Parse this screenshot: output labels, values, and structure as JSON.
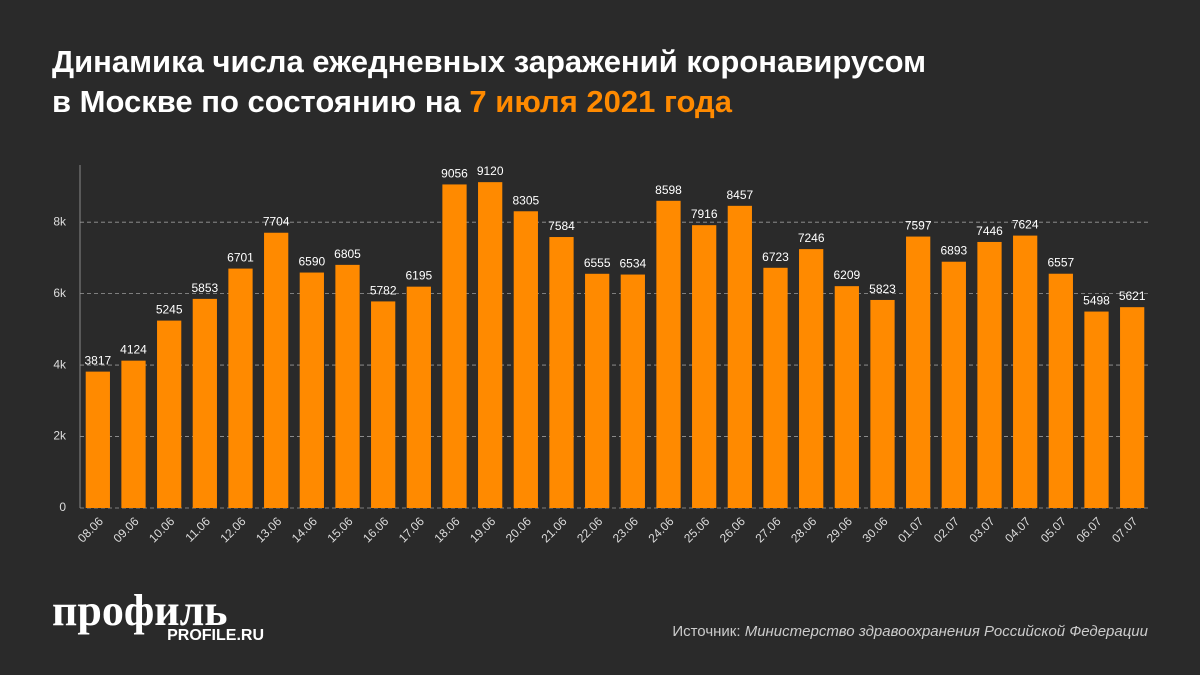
{
  "chart_data": {
    "type": "bar",
    "title": [
      "Динамика числа ежедневных заражений коронавирусом",
      "в Москве по состоянию на"
    ],
    "title_highlight": "7 июля 2021 года",
    "categories": [
      "08.06",
      "09.06",
      "10.06",
      "11.06",
      "12.06",
      "13.06",
      "14.06",
      "15.06",
      "16.06",
      "17.06",
      "18.06",
      "19.06",
      "20.06",
      "21.06",
      "22.06",
      "23.06",
      "24.06",
      "25.06",
      "26.06",
      "27.06",
      "28.06",
      "29.06",
      "30.06",
      "01.07",
      "02.07",
      "03.07",
      "04.07",
      "05.07",
      "06.07",
      "07.07"
    ],
    "values": [
      3817,
      4124,
      5245,
      5853,
      6701,
      7704,
      6590,
      6805,
      5782,
      6195,
      9056,
      9120,
      8305,
      7584,
      6555,
      6534,
      8598,
      7916,
      8457,
      6723,
      7246,
      6209,
      5823,
      7597,
      6893,
      7446,
      7624,
      6557,
      5498,
      5621
    ],
    "color": "#ff8a00",
    "ylim": [
      0,
      9600
    ],
    "yticks": [
      0,
      {
        "value": 2000,
        "label": "2k"
      },
      {
        "value": 4000,
        "label": "4k"
      },
      {
        "value": 6000,
        "label": "6k"
      },
      {
        "value": 8000,
        "label": "8k"
      }
    ],
    "grid": true,
    "source_label": "Источник:",
    "source": "Министерство здравоохранения Российской Федерации",
    "logo": {
      "name": "профиль",
      "url": "PROFILE.RU"
    }
  }
}
